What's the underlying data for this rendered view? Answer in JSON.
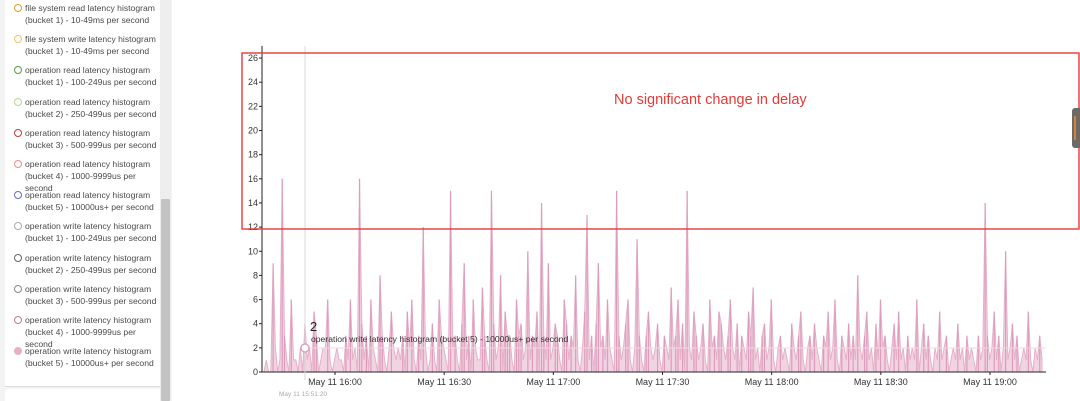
{
  "legend": {
    "items": [
      {
        "line1": "file system read latency histogram",
        "line2": "(bucket 1) - 10-49ms per second",
        "color": "#e0a030",
        "filled": false
      },
      {
        "line1": "file system write latency histogram",
        "line2": "(bucket 1) - 10-49ms per second",
        "color": "#f2c26b",
        "filled": false
      },
      {
        "line1": "operation read latency histogram",
        "line2": "(bucket 1) - 100-249us per second",
        "color": "#5a9a3a",
        "filled": false
      },
      {
        "line1": "operation read latency histogram",
        "line2": "(bucket 2) - 250-499us per second",
        "color": "#b8d88a",
        "filled": false
      },
      {
        "line1": "operation read latency histogram",
        "line2": "(bucket 3) - 500-999us per second",
        "color": "#c03a3a",
        "filled": false
      },
      {
        "line1": "operation read latency histogram",
        "line2": "(bucket 4) - 1000-9999us per second",
        "color": "#ef8a8a",
        "filled": false
      },
      {
        "line1": "operation read latency histogram",
        "line2": "(bucket 5) - 10000us+ per second",
        "color": "#6a6ac8",
        "filled": false
      },
      {
        "line1": "operation write latency histogram",
        "line2": "(bucket 1) - 100-249us per second",
        "color": "#aaaaaa",
        "filled": false
      },
      {
        "line1": "operation write latency histogram",
        "line2": "(bucket 2) - 250-499us per second",
        "color": "#666666",
        "filled": false
      },
      {
        "line1": "operation write latency histogram",
        "line2": "(bucket 3) - 500-999us per second",
        "color": "#888888",
        "filled": false
      },
      {
        "line1": "operation write latency histogram",
        "line2": "(bucket 4) - 1000-9999us per second",
        "color": "#c07898",
        "filled": false
      },
      {
        "line1": "operation write latency histogram",
        "line2": "(bucket 5) - 10000us+ per second",
        "color": "#e6b0c8",
        "filled": true
      }
    ]
  },
  "annotation": {
    "text": "No significant change in delay",
    "box_color": "#e53935",
    "text_color": "#e53935"
  },
  "tooltip": {
    "value": "2",
    "series": "operation write latency histogram (bucket 5) - 10000us+ per second",
    "time": "May 11 15:51:20"
  },
  "chart_data": {
    "type": "area",
    "series": [
      {
        "name": "operation write latency histogram (bucket 5) - 10000us+ per second",
        "color": "#e6b0c8",
        "values": [
          0,
          1,
          0,
          0,
          9,
          2,
          0,
          1,
          16,
          3,
          1,
          0,
          6,
          1,
          1,
          0,
          2,
          0,
          4,
          1,
          2,
          0,
          5,
          3,
          0,
          1,
          2,
          2,
          6,
          1,
          0,
          1,
          2,
          1,
          1,
          0,
          3,
          1,
          6,
          1,
          2,
          0,
          16,
          4,
          1,
          3,
          0,
          6,
          2,
          1,
          0,
          8,
          3,
          1,
          0,
          2,
          5,
          2,
          1,
          2,
          1,
          3,
          0,
          5,
          2,
          6,
          1,
          0,
          3,
          1,
          12,
          2,
          0,
          1,
          4,
          1,
          0,
          6,
          3,
          2,
          1,
          0,
          15,
          2,
          3,
          1,
          0,
          4,
          9,
          1,
          3,
          0,
          6,
          2,
          1,
          1,
          7,
          3,
          1,
          0,
          15,
          4,
          1,
          2,
          8,
          0,
          5,
          3,
          3,
          1,
          0,
          6,
          3,
          4,
          1,
          2,
          10,
          1,
          3,
          2,
          5,
          0,
          14,
          3,
          1,
          9,
          1,
          2,
          4,
          3,
          1,
          0,
          6,
          4,
          1,
          3,
          2,
          8,
          1,
          0,
          2,
          5,
          13,
          1,
          3,
          0,
          4,
          9,
          2,
          3,
          1,
          6,
          2,
          1,
          0,
          15,
          3,
          1,
          2,
          4,
          6,
          1,
          0,
          2,
          11,
          3,
          1,
          0,
          3,
          5,
          2,
          1,
          2,
          4,
          1,
          0,
          3,
          2,
          1,
          7,
          2,
          3,
          6,
          1,
          4,
          0,
          15,
          2,
          1,
          5,
          3,
          1,
          2,
          4,
          1,
          0,
          6,
          2,
          3,
          1,
          5,
          4,
          2,
          1,
          3,
          6,
          2,
          1,
          4,
          0,
          3,
          2,
          1,
          5,
          3,
          7,
          1,
          2,
          0,
          3,
          4,
          1,
          2,
          6,
          1,
          0,
          2,
          3,
          1,
          2,
          1,
          0,
          4,
          2,
          1,
          3,
          5,
          1,
          0,
          2,
          3,
          1,
          4,
          2,
          1,
          0,
          3,
          2,
          5,
          1,
          2,
          6,
          1,
          0,
          3,
          2,
          1,
          4,
          1,
          3,
          1,
          8,
          2,
          1,
          3,
          5,
          1,
          2,
          0,
          4,
          1,
          6,
          2,
          3,
          1,
          0,
          2,
          4,
          1,
          5,
          1,
          2,
          0,
          3,
          1,
          2,
          1,
          6,
          0,
          2,
          4,
          1,
          3,
          1,
          0,
          2,
          1,
          5,
          1,
          2,
          3,
          0,
          1,
          2,
          1,
          4,
          1,
          2,
          0,
          3,
          1,
          2,
          1,
          0,
          3,
          1,
          2,
          14,
          3,
          1,
          2,
          5,
          1,
          3,
          0,
          2,
          10,
          1,
          2,
          4,
          1,
          3,
          0,
          1,
          2,
          1,
          5,
          1,
          0,
          2,
          1,
          3,
          1
        ]
      }
    ],
    "x_ticks": [
      "May 11 16:00",
      "May 11 16:30",
      "May 11 17:00",
      "May 11 17:30",
      "May 11 18:00",
      "May 11 18:30",
      "May 11 19:00"
    ],
    "y_ticks": [
      "0",
      "2",
      "4",
      "6",
      "8",
      "10",
      "12",
      "14",
      "16",
      "18",
      "20",
      "22",
      "24",
      "26"
    ],
    "ylim": [
      0,
      27
    ]
  }
}
